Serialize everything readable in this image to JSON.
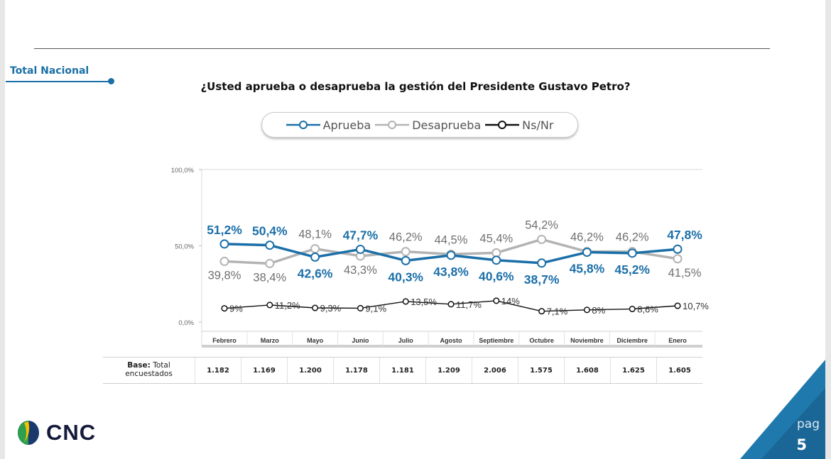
{
  "section_label": "Total Nacional",
  "question": "¿Usted aprueba o desaprueba la gestión del Presidente Gustavo Petro?",
  "legend": [
    {
      "label": "Aprueba",
      "color": "#1b6fa8"
    },
    {
      "label": "Desaprueba",
      "color": "#b3b3b3"
    },
    {
      "label": "Ns/Nr",
      "color": "#111111"
    }
  ],
  "chart_data": {
    "type": "line",
    "title": "¿Usted aprueba o desaprueba la gestión del Presidente Gustavo Petro?",
    "categories": [
      "Febrero",
      "Marzo",
      "Mayo",
      "Junio",
      "Julio",
      "Agosto",
      "Septiembre",
      "Octubre",
      "Noviembre",
      "Diciembre",
      "Enero"
    ],
    "ylim": [
      0,
      100
    ],
    "y_ticks": [
      "100,0%",
      "50,0%",
      "0,0%"
    ],
    "series": [
      {
        "name": "Aprueba",
        "color": "#1b6fa8",
        "values": [
          51.2,
          50.4,
          42.6,
          47.7,
          40.3,
          43.8,
          40.6,
          38.7,
          45.8,
          45.2,
          47.8
        ],
        "labels": [
          "51,2%",
          "50,4%",
          "42,6%",
          "47,7%",
          "40,3%",
          "43,8%",
          "40,6%",
          "38,7%",
          "45,8%",
          "45,2%",
          "47,8%"
        ]
      },
      {
        "name": "Desaprueba",
        "color": "#b3b3b3",
        "values": [
          39.8,
          38.4,
          48.1,
          43.3,
          46.2,
          44.5,
          45.4,
          54.2,
          46.2,
          46.2,
          41.5
        ],
        "labels": [
          "39,8%",
          "38,4%",
          "48,1%",
          "43,3%",
          "46,2%",
          "44,5%",
          "45,4%",
          "54,2%",
          "46,2%",
          "46,2%",
          "41,5%"
        ]
      },
      {
        "name": "Ns/Nr",
        "color": "#111111",
        "values": [
          9,
          11.2,
          9.3,
          9.1,
          13.5,
          11.7,
          14,
          7.1,
          8,
          8.6,
          10.7
        ],
        "labels": [
          "9%",
          "11,2%",
          "9,3%",
          "9,1%",
          "13,5%",
          "11,7%",
          "14%",
          "7,1%",
          "8%",
          "8,6%",
          "10,7%"
        ]
      }
    ],
    "grid": false,
    "legend_position": "top"
  },
  "base": {
    "label_bold": "Base:",
    "label_rest": "Total encuestados",
    "values": [
      "1.182",
      "1.169",
      "1.200",
      "1.178",
      "1.181",
      "1.209",
      "2.006",
      "1.575",
      "1.608",
      "1.625",
      "1.605"
    ]
  },
  "logo_text": "CNC",
  "page_word": "pag",
  "page_number": "5"
}
